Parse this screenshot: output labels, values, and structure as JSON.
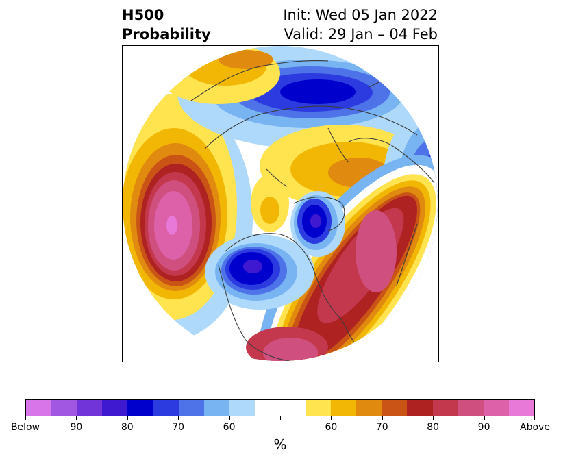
{
  "header": {
    "title_line1": "H500",
    "title_line2": "Probability",
    "init": "Init: Wed 05 Jan 2022",
    "valid": "Valid: 29 Jan – 04 Feb"
  },
  "map": {
    "projection": "north-polar-stereographic",
    "variable": "500 hPa geopotential height probability",
    "features": [
      "coastlines",
      "country-borders",
      "state-borders"
    ]
  },
  "colorbar": {
    "colors": [
      "#d875e8",
      "#a157e2",
      "#7034d9",
      "#3f19d0",
      "#0000cc",
      "#2c3be0",
      "#4e72e8",
      "#78b3f2",
      "#aed9fb",
      "#ffffff",
      "#ffffff",
      "#ffe34f",
      "#f2b705",
      "#e08a0f",
      "#c95416",
      "#ae2222",
      "#c4384e",
      "#cf4f7e",
      "#dc61a9",
      "#e879d9"
    ],
    "tick_labels": [
      "Below",
      "90",
      "80",
      "70",
      "60",
      "",
      "60",
      "70",
      "80",
      "90",
      "Above"
    ],
    "unit_label": "%"
  }
}
